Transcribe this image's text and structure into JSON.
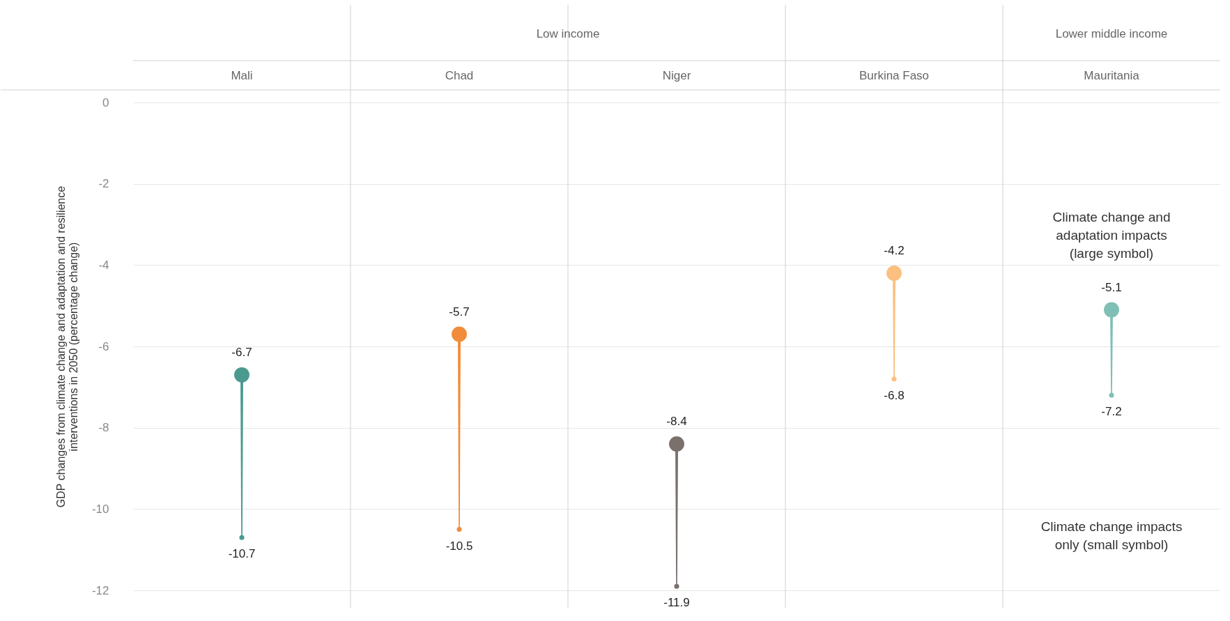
{
  "chart_data": {
    "type": "scatter",
    "ylabel": "GDP changes from climate change and adaptation and resilience interventions in 2050 (percentage change)",
    "categories": [
      "Mali",
      "Chad",
      "Niger",
      "Burkina Faso",
      "Mauritania"
    ],
    "series": [
      {
        "colors": [
          "#4a9a8f",
          "#f08c3a",
          "#7a706c",
          "#fbc07f",
          "#7fbfb5"
        ],
        "values": [
          -6.7,
          -5.7,
          -8.4,
          -4.2,
          -5.1
        ]
      },
      {
        "colors": [
          "#4a9a8f",
          "#f08c3a",
          "#7a706c",
          "#fbc07f",
          "#7fbfb5"
        ],
        "values": [
          -10.7,
          -10.5,
          -11.9,
          -6.8,
          -7.2
        ]
      }
    ],
    "ylim": [
      -12,
      0
    ],
    "yticks": [
      -12,
      -10,
      -8,
      -6,
      -4,
      -2,
      0
    ],
    "grid": "y",
    "data_labels": true,
    "marker": "circle",
    "annotations": [
      "Low income",
      "Lower middle income",
      "Climate change and adaptation impacts (large symbol)",
      "Climate change impacts only (small symbol)"
    ]
  }
}
